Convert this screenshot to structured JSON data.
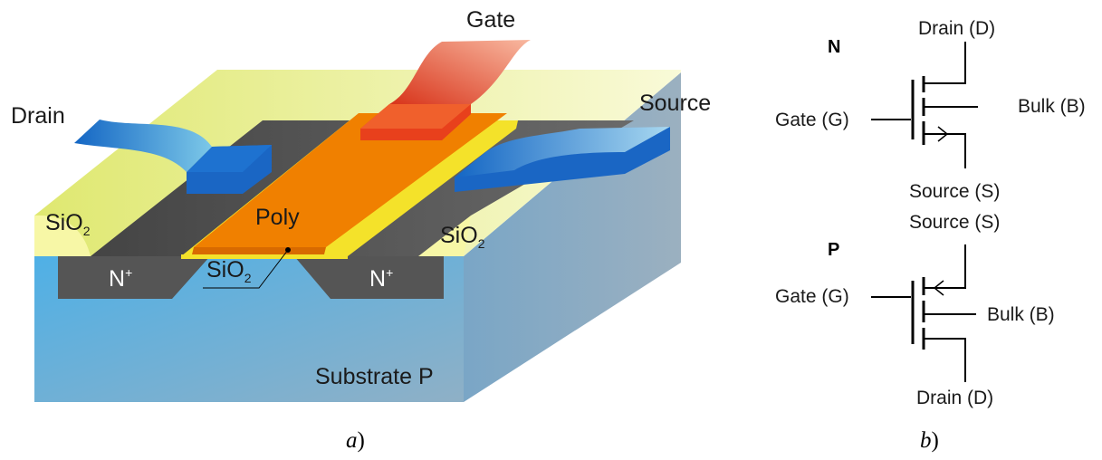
{
  "panel_a": {
    "labels": {
      "gate": "Gate",
      "drain": "Drain",
      "source": "Source",
      "poly": "Poly",
      "sio2_left": "SiO",
      "sio2_center": "SiO",
      "sio2_right": "SiO",
      "sio2_subscript": "2",
      "n_plus_left": "N",
      "n_plus_right": "N",
      "n_plus_superscript": "+",
      "substrate": "Substrate P"
    },
    "caption": "a)",
    "caption_letter": "a",
    "caption_paren": ")"
  },
  "panel_b": {
    "n_type": {
      "heading": "N",
      "gate": "Gate (G)",
      "drain": "Drain (D)",
      "source": "Source (S)",
      "bulk": "Bulk (B)"
    },
    "p_type": {
      "heading": "P",
      "gate": "Gate (G)",
      "drain": "Drain (D)",
      "source": "Source (S)",
      "bulk": "Bulk (B)"
    },
    "caption_letter": "b",
    "caption_paren": ")"
  },
  "colors": {
    "substrate_front": "#5fb6e6",
    "substrate_right": "#7fa8c4",
    "oxide_yellow": "#eef08a",
    "oxide_yellow_light": "#f6f8b8",
    "n_plus": "#555555",
    "poly_orange": "#f08000",
    "gate_red": "#e8401c",
    "metal_blue": "#1a70c8"
  }
}
